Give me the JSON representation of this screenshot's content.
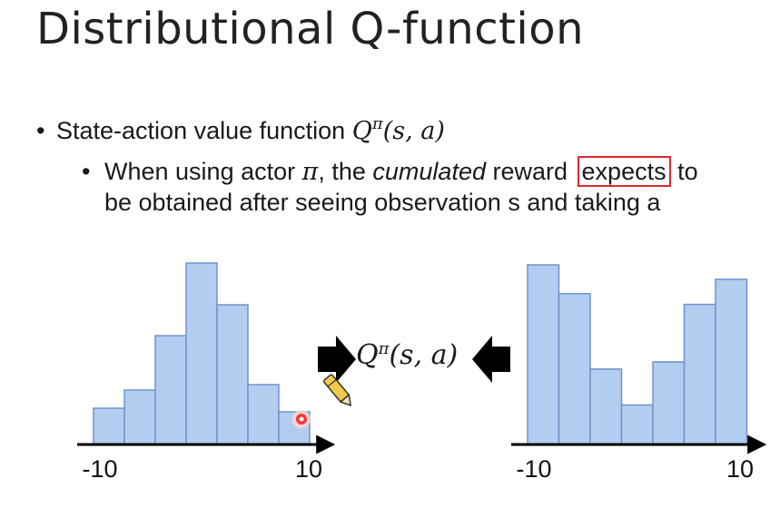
{
  "title": "Distributional Q-function",
  "bullet1": {
    "text": "State-action value function ",
    "math_q": "Q",
    "math_sup": "π",
    "math_args": "(s, a)"
  },
  "bullet2": {
    "pre": "When using actor ",
    "pi": "π",
    "mid": ", the ",
    "italic": "cumulated",
    "post": " reward ",
    "highlight": "expects",
    "tail": " to",
    "line2": "be obtained after seeing observation s and taking a"
  },
  "center_label": {
    "q": "Q",
    "sup": "π",
    "args": "(s, a)"
  },
  "colors": {
    "bar_fill": "#b3cdf0",
    "bar_stroke": "#6f93c9",
    "highlight_box": "#e0262c",
    "arrow": "#000000"
  },
  "chart_data": [
    {
      "type": "bar",
      "x_start_label": "-10",
      "x_end_label": "10",
      "values": [
        0.2,
        0.3,
        0.6,
        1.0,
        0.77,
        0.33,
        0.18
      ]
    },
    {
      "type": "bar",
      "x_start_label": "-10",
      "x_end_label": "10",
      "values": [
        1.0,
        0.84,
        0.42,
        0.22,
        0.46,
        0.78,
        0.92
      ]
    }
  ]
}
